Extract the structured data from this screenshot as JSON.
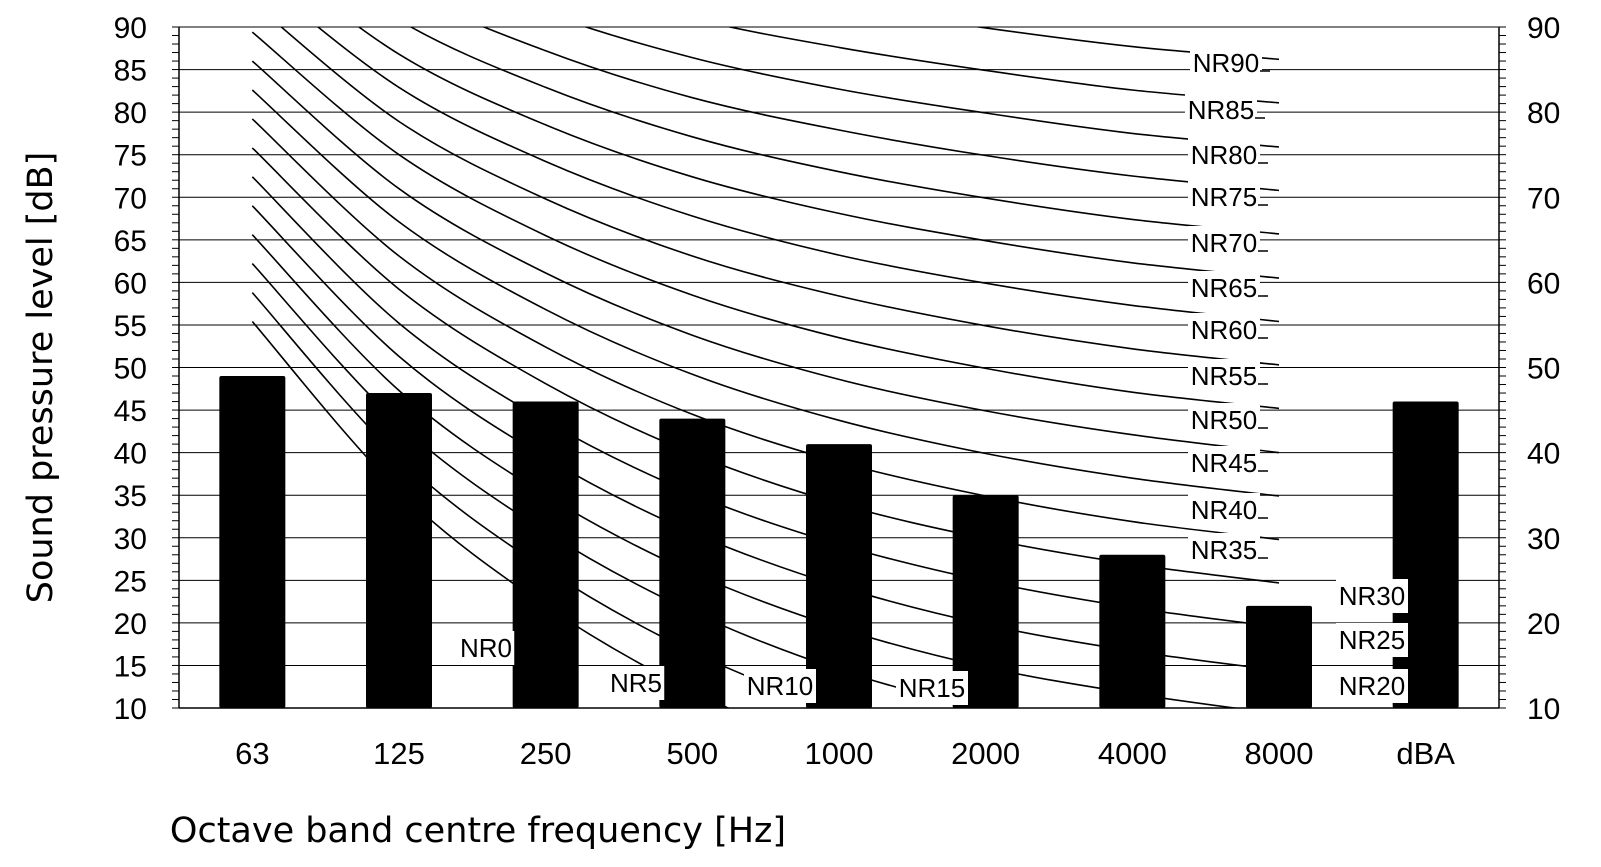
{
  "chart_data": {
    "type": "bar",
    "title": "",
    "xlabel": "Octave band centre frequency [Hz]",
    "ylabel": "Sound pressure level [dB]",
    "categories": [
      "63",
      "125",
      "250",
      "500",
      "1000",
      "2000",
      "4000",
      "8000",
      "dBA"
    ],
    "values": [
      49,
      47,
      46,
      44,
      41,
      35,
      28,
      22,
      46
    ],
    "ylim": [
      10,
      90
    ],
    "yticks_left": [
      "10",
      "15",
      "20",
      "25",
      "30",
      "35",
      "40",
      "45",
      "50",
      "55",
      "60",
      "65",
      "70",
      "75",
      "80",
      "85",
      "90"
    ],
    "yticks_right": [
      "10",
      "20",
      "30",
      "40",
      "50",
      "60",
      "70",
      "80",
      "90"
    ],
    "grid": true,
    "bar_color": "#000000",
    "curve_color": "#000000",
    "nr_curves": [
      {
        "name": "NR0",
        "values": [
          55.4,
          35.5,
          22.0,
          12.0,
          4.8,
          -0.2,
          -3.5,
          -6.1
        ]
      },
      {
        "name": "NR5",
        "values": [
          58.8,
          39.4,
          26.3,
          16.6,
          9.7,
          4.8,
          1.6,
          -1.0
        ]
      },
      {
        "name": "NR10",
        "values": [
          62.2,
          43.4,
          30.7,
          21.3,
          14.5,
          9.8,
          6.6,
          4.2
        ]
      },
      {
        "name": "NR15",
        "values": [
          65.6,
          47.3,
          35.0,
          25.9,
          19.4,
          14.8,
          11.7,
          9.3
        ]
      },
      {
        "name": "NR20",
        "values": [
          69.0,
          51.3,
          39.4,
          30.6,
          24.3,
          19.8,
          16.7,
          14.4
        ]
      },
      {
        "name": "NR25",
        "values": [
          72.4,
          55.2,
          43.7,
          35.2,
          29.2,
          24.9,
          21.8,
          19.5
        ]
      },
      {
        "name": "NR30",
        "values": [
          75.8,
          59.2,
          48.1,
          39.9,
          34.0,
          29.9,
          26.9,
          24.7
        ]
      },
      {
        "name": "NR35",
        "values": [
          79.2,
          63.1,
          52.4,
          44.5,
          38.9,
          34.9,
          31.9,
          29.8
        ]
      },
      {
        "name": "NR40",
        "values": [
          82.6,
          67.1,
          56.8,
          49.2,
          43.8,
          39.9,
          37.0,
          34.9
        ]
      },
      {
        "name": "NR45",
        "values": [
          86.0,
          71.0,
          61.1,
          53.8,
          48.6,
          44.9,
          42.1,
          40.0
        ]
      },
      {
        "name": "NR50",
        "values": [
          89.4,
          75.0,
          65.5,
          58.5,
          53.5,
          49.9,
          47.1,
          45.2
        ]
      },
      {
        "name": "NR55",
        "values": [
          92.9,
          78.9,
          69.8,
          63.1,
          58.4,
          54.9,
          52.2,
          50.3
        ]
      },
      {
        "name": "NR60",
        "values": [
          96.3,
          82.9,
          74.2,
          67.8,
          63.2,
          59.9,
          57.3,
          55.4
        ]
      },
      {
        "name": "NR65",
        "values": [
          99.7,
          86.8,
          78.5,
          72.4,
          68.1,
          64.9,
          62.3,
          60.5
        ]
      },
      {
        "name": "NR70",
        "values": [
          103.1,
          90.8,
          82.9,
          77.1,
          73.0,
          69.9,
          67.4,
          65.7
        ]
      },
      {
        "name": "NR75",
        "values": [
          106.5,
          94.7,
          87.2,
          81.7,
          77.9,
          74.9,
          72.5,
          70.8
        ]
      },
      {
        "name": "NR80",
        "values": [
          109.9,
          98.6,
          91.6,
          86.4,
          82.7,
          79.9,
          77.5,
          75.9
        ]
      },
      {
        "name": "NR85",
        "values": [
          113.3,
          102.6,
          95.9,
          91.0,
          87.6,
          84.9,
          82.6,
          81.1
        ]
      },
      {
        "name": "NR90",
        "values": [
          116.7,
          106.5,
          100.3,
          95.7,
          92.5,
          89.9,
          87.7,
          86.2
        ]
      }
    ]
  }
}
